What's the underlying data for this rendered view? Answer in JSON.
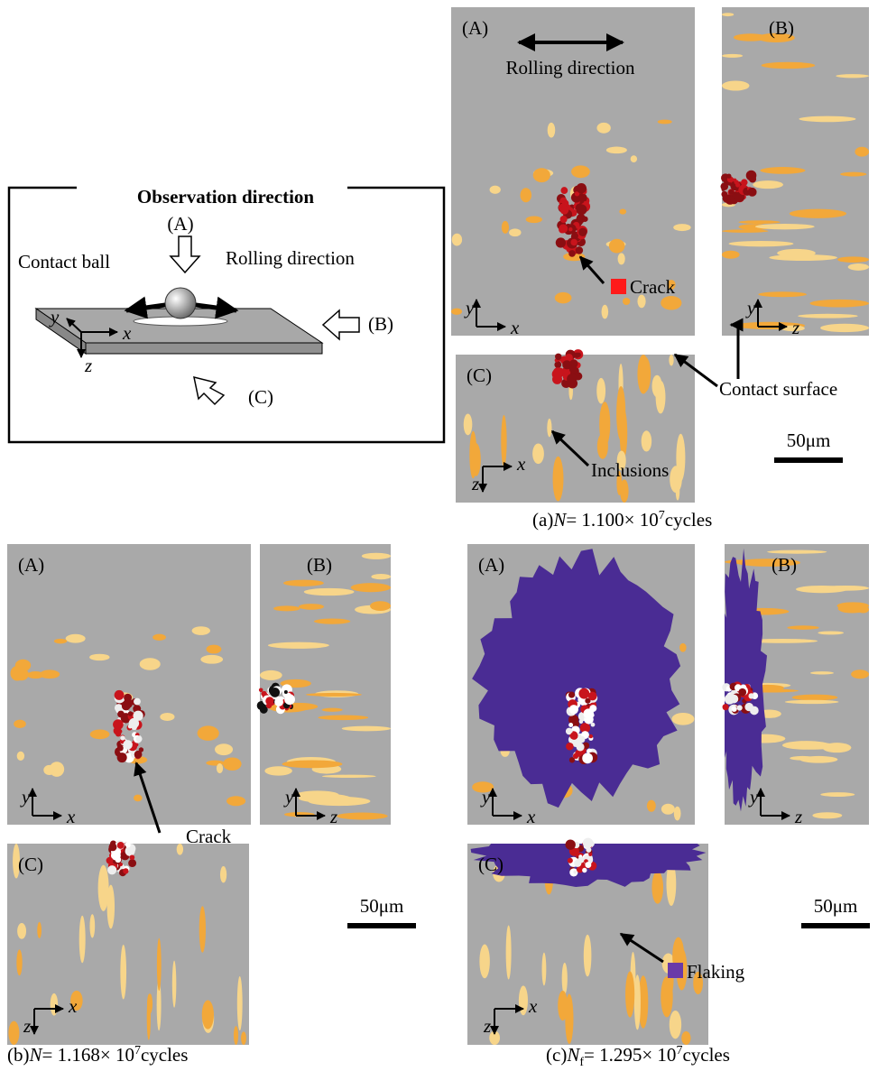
{
  "diagram": {
    "title": "Observation direction",
    "direction_a": "(A)",
    "direction_b": "(B)",
    "direction_c": "(C)",
    "contact_ball": "Contact ball",
    "rolling_direction": "Rolling direction"
  },
  "axis_labels": {
    "x": "x",
    "y": "y",
    "z": "z"
  },
  "panels": [
    {
      "views": [
        "(A)",
        "(B)",
        "(C)"
      ],
      "annotations": {
        "rolling_direction": "Rolling direction",
        "crack": "Crack",
        "contact_surface": "Contact surface",
        "inclusions": "Inclusions"
      },
      "scale_bar": "50μm",
      "caption": {
        "label": "(a)",
        "symbol": "N",
        "equals": "= 1.100× 10",
        "exponent": "7",
        "unit": "cycles"
      }
    },
    {
      "views": [
        "(A)",
        "(B)",
        "(C)"
      ],
      "annotations": {
        "crack": "Crack"
      },
      "scale_bar": "50μm",
      "caption": {
        "label": "(b)",
        "symbol": "N",
        "equals": "= 1.168× 10",
        "exponent": "7",
        "unit": "cycles"
      }
    },
    {
      "views": [
        "(A)",
        "(B)",
        "(C)"
      ],
      "annotations": {
        "flaking": "Flaking"
      },
      "scale_bar": "50μm",
      "caption": {
        "label": "(c)",
        "symbol": "N",
        "subscript": "f",
        "equals": "= 1.295× 10",
        "exponent": "7",
        "unit": "cycles"
      }
    }
  ]
}
